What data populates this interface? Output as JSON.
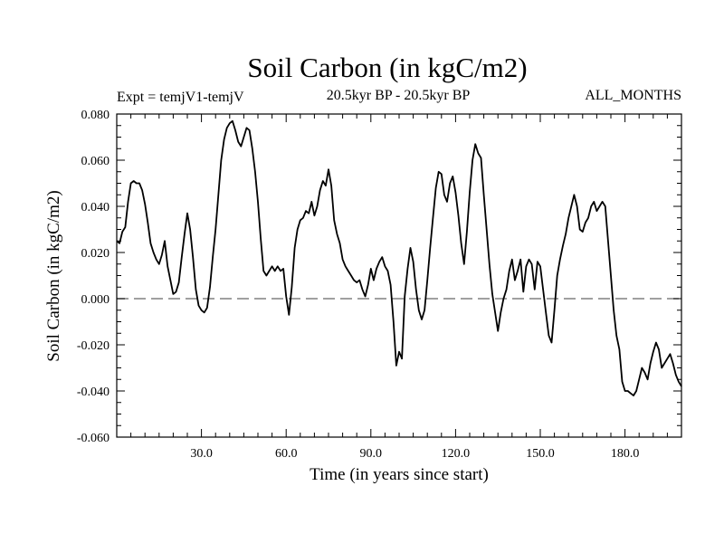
{
  "chart_data": {
    "type": "line",
    "title": "Soil Carbon (in kgC/m2)",
    "experiment": "Expt = temjV1-temjV",
    "period": "20.5kyr BP - 20.5kyr BP",
    "season": "ALL_MONTHS",
    "xlabel": "Time (in years since start)",
    "ylabel": "Soil Carbon (in kgC/m2)",
    "xlim": [
      0,
      200
    ],
    "ylim": [
      -0.06,
      0.08
    ],
    "xticks": [
      30,
      60,
      90,
      120,
      150,
      180
    ],
    "xtick_labels": [
      "30.0",
      "60.0",
      "90.0",
      "120.0",
      "150.0",
      "180.0"
    ],
    "yticks": [
      -0.06,
      -0.04,
      -0.02,
      0.0,
      0.02,
      0.04,
      0.06,
      0.08
    ],
    "ytick_labels": [
      "-0.060",
      "-0.040",
      "-0.020",
      "0.000",
      "0.020",
      "0.040",
      "0.060",
      "0.080"
    ],
    "reference_line": 0.0,
    "series": [
      {
        "name": "Soil Carbon",
        "x": [
          0,
          1,
          2,
          3,
          4,
          5,
          6,
          7,
          8,
          9,
          10,
          11,
          12,
          13,
          14,
          15,
          16,
          17,
          18,
          19,
          20,
          21,
          22,
          23,
          24,
          25,
          26,
          27,
          28,
          29,
          30,
          31,
          32,
          33,
          34,
          35,
          36,
          37,
          38,
          39,
          40,
          41,
          42,
          43,
          44,
          45,
          46,
          47,
          48,
          49,
          50,
          51,
          52,
          53,
          54,
          55,
          56,
          57,
          58,
          59,
          60,
          61,
          62,
          63,
          64,
          65,
          66,
          67,
          68,
          69,
          70,
          71,
          72,
          73,
          74,
          75,
          76,
          77,
          78,
          79,
          80,
          81,
          82,
          83,
          84,
          85,
          86,
          87,
          88,
          89,
          90,
          91,
          92,
          93,
          94,
          95,
          96,
          97,
          98,
          99,
          100,
          101,
          102,
          103,
          104,
          105,
          106,
          107,
          108,
          109,
          110,
          111,
          112,
          113,
          114,
          115,
          116,
          117,
          118,
          119,
          120,
          121,
          122,
          123,
          124,
          125,
          126,
          127,
          128,
          129,
          130,
          131,
          132,
          133,
          134,
          135,
          136,
          137,
          138,
          139,
          140,
          141,
          142,
          143,
          144,
          145,
          146,
          147,
          148,
          149,
          150,
          151,
          152,
          153,
          154,
          155,
          156,
          157,
          158,
          159,
          160,
          161,
          162,
          163,
          164,
          165,
          166,
          167,
          168,
          169,
          170,
          171,
          172,
          173,
          174,
          175,
          176,
          177,
          178,
          179,
          180,
          181,
          182,
          183,
          184,
          185,
          186,
          187,
          188,
          189,
          190,
          191,
          192,
          193,
          194,
          195,
          196,
          197,
          198,
          199,
          200
        ],
        "values": [
          0.025,
          0.024,
          0.029,
          0.031,
          0.042,
          0.05,
          0.051,
          0.05,
          0.05,
          0.047,
          0.041,
          0.033,
          0.024,
          0.02,
          0.017,
          0.015,
          0.019,
          0.025,
          0.014,
          0.008,
          0.002,
          0.003,
          0.007,
          0.018,
          0.028,
          0.037,
          0.03,
          0.018,
          0.004,
          -0.003,
          -0.005,
          -0.006,
          -0.004,
          0.005,
          0.018,
          0.03,
          0.045,
          0.06,
          0.069,
          0.074,
          0.076,
          0.077,
          0.073,
          0.068,
          0.066,
          0.07,
          0.074,
          0.073,
          0.065,
          0.055,
          0.042,
          0.026,
          0.012,
          0.01,
          0.012,
          0.014,
          0.012,
          0.014,
          0.012,
          0.013,
          0.001,
          -0.007,
          0.005,
          0.022,
          0.03,
          0.034,
          0.035,
          0.038,
          0.037,
          0.042,
          0.036,
          0.04,
          0.047,
          0.051,
          0.049,
          0.056,
          0.049,
          0.034,
          0.028,
          0.024,
          0.017,
          0.014,
          0.012,
          0.01,
          0.008,
          0.007,
          0.008,
          0.004,
          0.001,
          0.006,
          0.013,
          0.008,
          0.013,
          0.016,
          0.018,
          0.014,
          0.012,
          0.006,
          -0.01,
          -0.029,
          -0.023,
          -0.026,
          0.001,
          0.013,
          0.022,
          0.016,
          0.004,
          -0.005,
          -0.009,
          -0.005,
          0.008,
          0.022,
          0.035,
          0.048,
          0.055,
          0.054,
          0.045,
          0.042,
          0.05,
          0.053,
          0.046,
          0.036,
          0.024,
          0.015,
          0.029,
          0.046,
          0.06,
          0.067,
          0.063,
          0.061,
          0.045,
          0.03,
          0.015,
          0.002,
          -0.006,
          -0.014,
          -0.006,
          0.0,
          0.004,
          0.012,
          0.017,
          0.008,
          0.012,
          0.017,
          0.003,
          0.014,
          0.017,
          0.015,
          0.004,
          0.016,
          0.014,
          0.004,
          -0.006,
          -0.016,
          -0.019,
          -0.005,
          0.01,
          0.017,
          0.023,
          0.028,
          0.035,
          0.04,
          0.045,
          0.04,
          0.03,
          0.029,
          0.033,
          0.035,
          0.04,
          0.042,
          0.038,
          0.04,
          0.042,
          0.04,
          0.025,
          0.01,
          -0.005,
          -0.016,
          -0.022,
          -0.036,
          -0.04,
          -0.04,
          -0.041,
          -0.042,
          -0.04,
          -0.035,
          -0.03,
          -0.032,
          -0.035,
          -0.028,
          -0.023,
          -0.019,
          -0.022,
          -0.03,
          -0.028,
          -0.026,
          -0.024,
          -0.028,
          -0.033,
          -0.036,
          -0.038
        ]
      }
    ]
  }
}
